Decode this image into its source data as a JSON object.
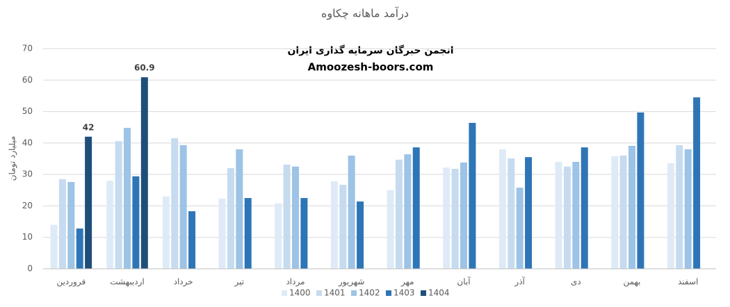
{
  "chart_data": {
    "type": "bar",
    "title": "درآمد ماهانه چکاوه",
    "annotations": [
      "انجمن خبرگان سرمایه گذاری ایران",
      "Amoozesh-boors.com"
    ],
    "y_label": "میلیارد تومان",
    "categories": [
      "فروردین",
      "اردیبهشت",
      "خرداد",
      "تیر",
      "مرداد",
      "شهریور",
      "مهر",
      "آبان",
      "آذر",
      "دی",
      "بهمن",
      "اسفند"
    ],
    "series": [
      {
        "name": "1400",
        "color": "#deebf7",
        "values": [
          14,
          28,
          23,
          22.3,
          20.8,
          27.8,
          25,
          32.2,
          38,
          34,
          35.8,
          33.6
        ]
      },
      {
        "name": "1401",
        "color": "#c6dbef",
        "values": [
          28.5,
          40.6,
          41.5,
          32,
          33.1,
          26.7,
          34.7,
          31.8,
          35.1,
          32.5,
          36,
          39.3
        ]
      },
      {
        "name": "1402",
        "color": "#9dc3e6",
        "values": [
          27.6,
          44.8,
          39.3,
          38,
          32.5,
          36,
          36.4,
          33.8,
          25.8,
          34,
          39.1,
          38
        ]
      },
      {
        "name": "1403",
        "color": "#2e75b6",
        "values": [
          12.8,
          29.4,
          18.3,
          22.5,
          22.5,
          21.4,
          38.6,
          46.4,
          35.5,
          38.6,
          49.7,
          54.5
        ]
      },
      {
        "name": "1404",
        "color": "#1f4e79",
        "show_labels": true,
        "values": [
          42,
          60.9,
          null,
          null,
          null,
          null,
          null,
          null,
          null,
          null,
          null,
          null
        ]
      }
    ],
    "ylim": [
      0,
      70
    ],
    "yticks": [
      0,
      10,
      20,
      30,
      40,
      50,
      60,
      70
    ],
    "grid": true,
    "legend": "bottom"
  }
}
